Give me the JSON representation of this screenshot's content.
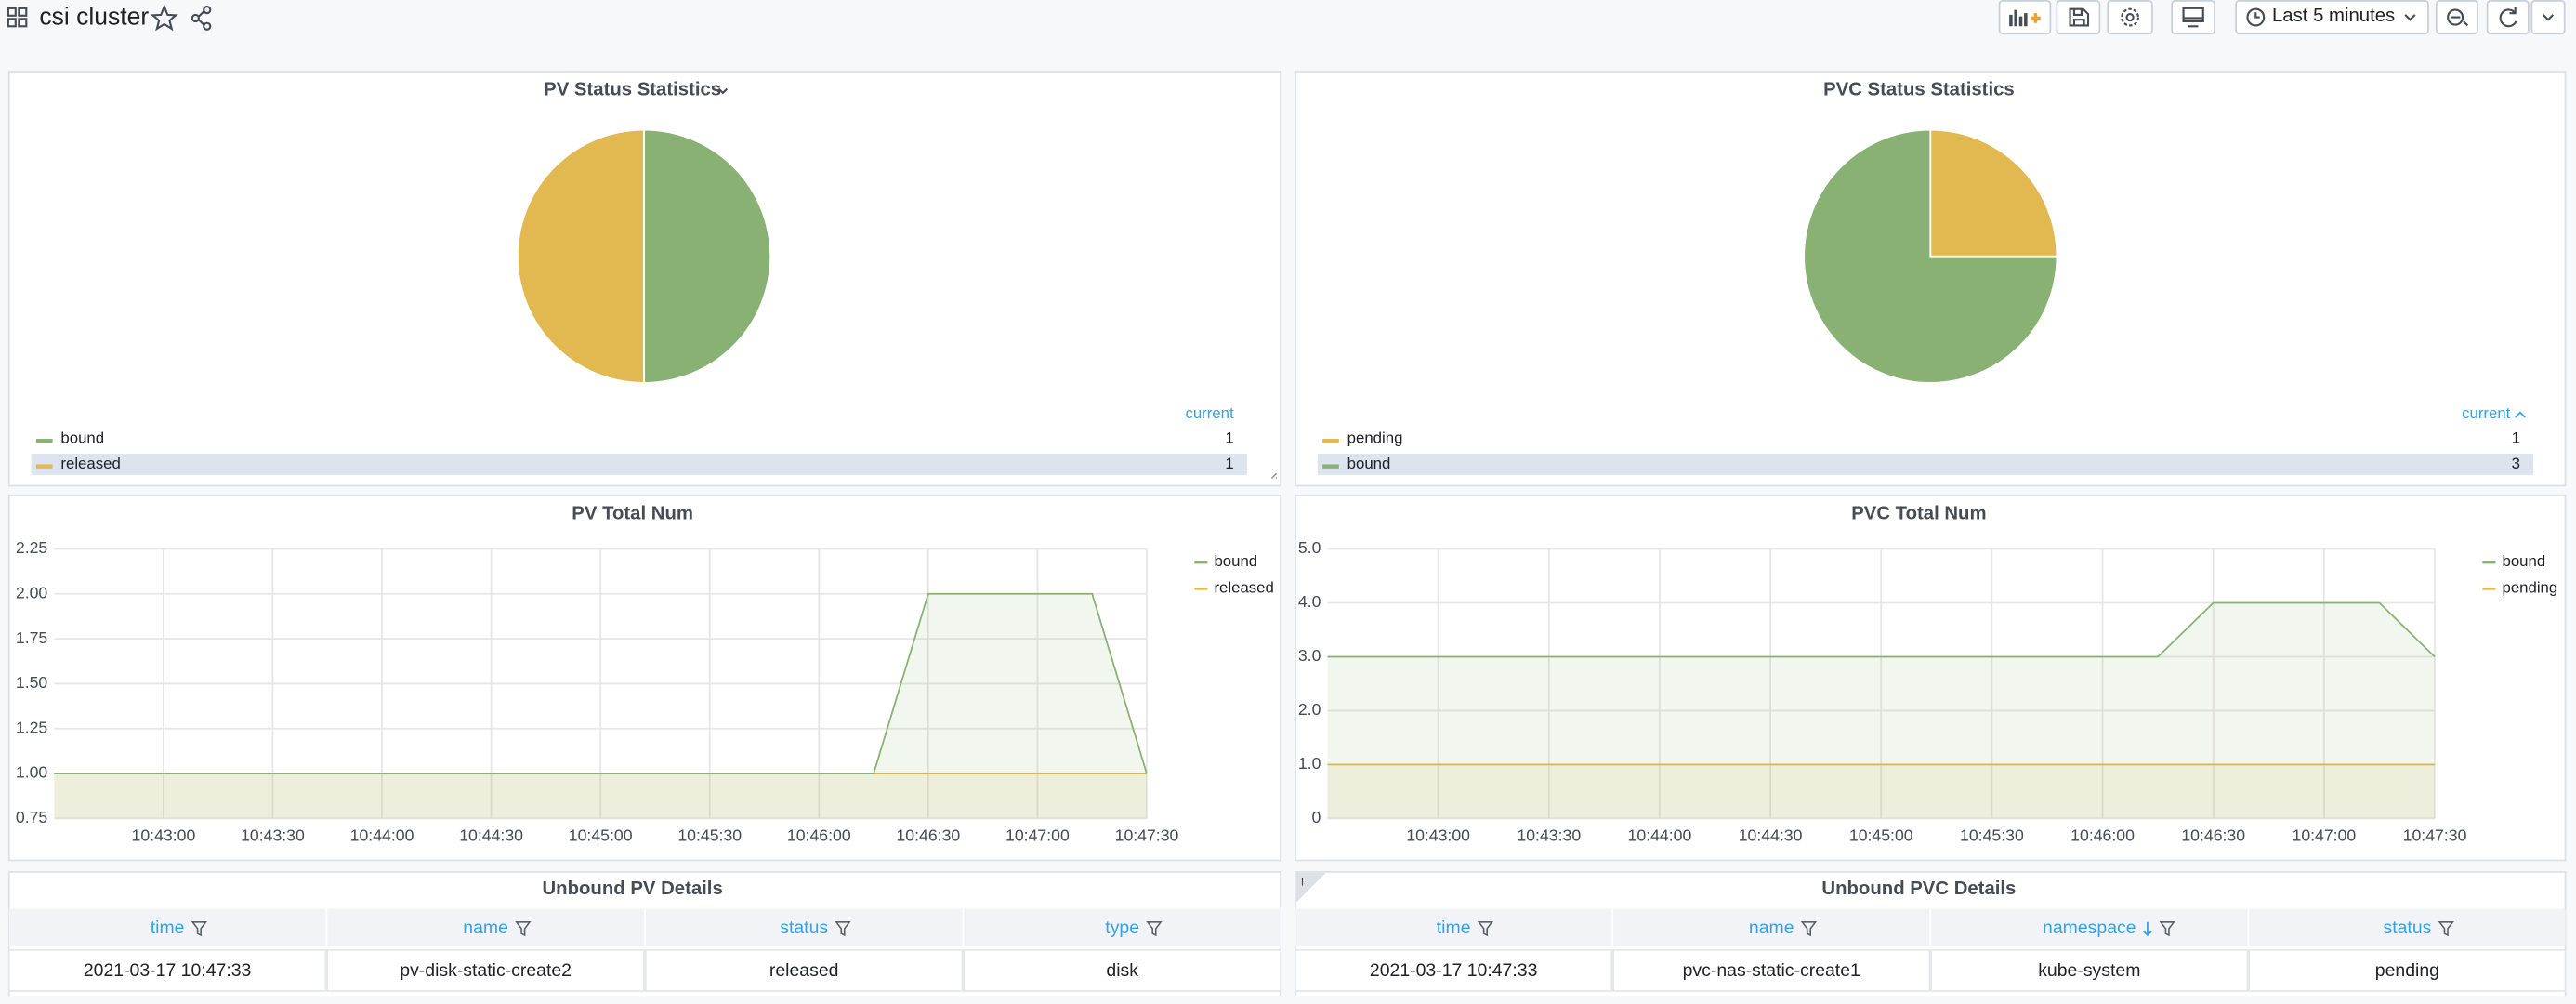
{
  "header": {
    "title": "csi cluster",
    "time_range": "Last 5 minutes"
  },
  "chart_data": [
    {
      "type": "pie",
      "title": "PV Status Statistics",
      "legend_header": "current",
      "categories": [
        "bound",
        "released"
      ],
      "values": [
        1,
        1
      ],
      "colors": [
        "#89b173",
        "#e2b851"
      ]
    },
    {
      "type": "pie",
      "title": "PVC Status Statistics",
      "legend_header": "current",
      "categories": [
        "pending",
        "bound"
      ],
      "values": [
        1,
        3
      ],
      "colors": [
        "#e2b851",
        "#89b173"
      ]
    },
    {
      "type": "line",
      "title": "PV Total Num",
      "x": [
        "10:42:30",
        "10:42:45",
        "10:43:00",
        "10:43:15",
        "10:43:30",
        "10:43:45",
        "10:44:00",
        "10:44:15",
        "10:44:30",
        "10:44:45",
        "10:45:00",
        "10:45:15",
        "10:45:30",
        "10:45:45",
        "10:46:00",
        "10:46:15",
        "10:46:30",
        "10:46:45",
        "10:47:00",
        "10:47:15",
        "10:47:30"
      ],
      "series": [
        {
          "name": "bound",
          "color": "#89b173",
          "values": [
            1,
            1,
            1,
            1,
            1,
            1,
            1,
            1,
            1,
            1,
            1,
            1,
            1,
            1,
            1,
            1,
            2,
            2,
            2,
            2,
            1
          ]
        },
        {
          "name": "released",
          "color": "#e2b851",
          "values": [
            1,
            1,
            1,
            1,
            1,
            1,
            1,
            1,
            1,
            1,
            1,
            1,
            1,
            1,
            1,
            1,
            1,
            1,
            1,
            1,
            1
          ]
        }
      ],
      "xlim": [
        "10:42:30",
        "10:47:30"
      ],
      "xticks": [
        "10:43:00",
        "10:43:30",
        "10:44:00",
        "10:44:30",
        "10:45:00",
        "10:45:30",
        "10:46:00",
        "10:46:30",
        "10:47:00",
        "10:47:30"
      ],
      "ylim": [
        0.75,
        2.25
      ],
      "yticks": [
        0.75,
        {
          "value": 1,
          "label": "1.00"
        },
        1.25,
        {
          "value": 1.5,
          "label": "1.50"
        },
        1.75,
        {
          "value": 2,
          "label": "2.00"
        },
        2.25
      ],
      "grid": true,
      "fill": true
    },
    {
      "type": "line",
      "title": "PVC Total Num",
      "x": [
        "10:42:30",
        "10:42:45",
        "10:43:00",
        "10:43:15",
        "10:43:30",
        "10:43:45",
        "10:44:00",
        "10:44:15",
        "10:44:30",
        "10:44:45",
        "10:45:00",
        "10:45:15",
        "10:45:30",
        "10:45:45",
        "10:46:00",
        "10:46:15",
        "10:46:30",
        "10:46:45",
        "10:47:00",
        "10:47:15",
        "10:47:30"
      ],
      "series": [
        {
          "name": "bound",
          "color": "#89b173",
          "values": [
            3,
            3,
            3,
            3,
            3,
            3,
            3,
            3,
            3,
            3,
            3,
            3,
            3,
            3,
            3,
            3,
            4,
            4,
            4,
            4,
            3
          ]
        },
        {
          "name": "pending",
          "color": "#e2b851",
          "values": [
            1,
            1,
            1,
            1,
            1,
            1,
            1,
            1,
            1,
            1,
            1,
            1,
            1,
            1,
            1,
            1,
            1,
            1,
            1,
            1,
            1
          ]
        }
      ],
      "xlim": [
        "10:42:30",
        "10:47:30"
      ],
      "xticks": [
        "10:43:00",
        "10:43:30",
        "10:44:00",
        "10:44:30",
        "10:45:00",
        "10:45:30",
        "10:46:00",
        "10:46:30",
        "10:47:00",
        "10:47:30"
      ],
      "ylim": [
        0,
        5
      ],
      "yticks": [
        0,
        {
          "value": 1,
          "label": "1.0"
        },
        {
          "value": 2,
          "label": "2.0"
        },
        {
          "value": 3,
          "label": "3.0"
        },
        {
          "value": 4,
          "label": "4.0"
        },
        {
          "value": 5,
          "label": "5.0"
        }
      ],
      "grid": true,
      "fill": true
    }
  ],
  "tables": [
    {
      "title": "Unbound PV Details",
      "columns": [
        "time",
        "name",
        "status",
        "type"
      ],
      "rows": [
        [
          "2021-03-17 10:47:33",
          "pv-disk-static-create2",
          "released",
          "disk"
        ]
      ]
    },
    {
      "title": "Unbound PVC Details",
      "columns": [
        "time",
        "name",
        "namespace",
        "status"
      ],
      "rows": [
        [
          "2021-03-17 10:47:33",
          "pvc-nas-static-create1",
          "kube-system",
          "pending"
        ]
      ]
    }
  ]
}
